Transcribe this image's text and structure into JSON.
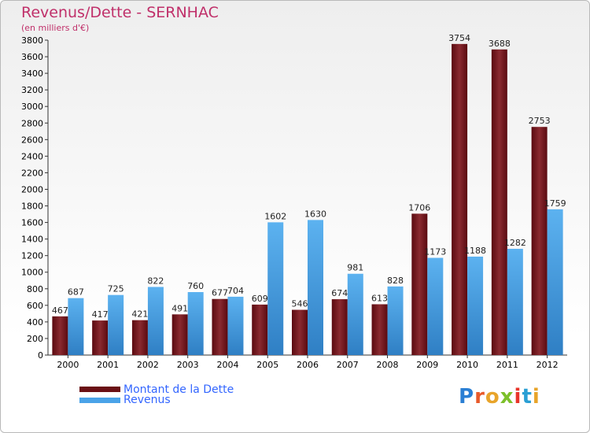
{
  "header": {
    "title": "Revenus/Dette - SERNHAC",
    "subtitle": "(en milliers d'€)"
  },
  "legend": {
    "debt_label": "Montant de la Dette",
    "revenue_label": "Revenus"
  },
  "branding": {
    "logo_text": "Proxiti"
  },
  "colors": {
    "debt_bar": "#7a1f24",
    "revenue_bar": "#4aa3e8",
    "title": "#c0306a",
    "legend_text": "#3366ff"
  },
  "chart_data": {
    "type": "bar",
    "title": "Revenus/Dette - SERNHAC",
    "ylabel": "",
    "xlabel": "",
    "categories": [
      "2000",
      "2001",
      "2002",
      "2003",
      "2004",
      "2005",
      "2006",
      "2007",
      "2008",
      "2009",
      "2010",
      "2011",
      "2012"
    ],
    "series": [
      {
        "name": "Montant de la Dette",
        "values": [
          467,
          417,
          421,
          491,
          677,
          609,
          546,
          674,
          613,
          1706,
          3754,
          3688,
          2753
        ]
      },
      {
        "name": "Revenus",
        "values": [
          687,
          725,
          822,
          760,
          704,
          1602,
          1630,
          981,
          828,
          1173,
          1188,
          1282,
          1759
        ]
      }
    ],
    "ylim": [
      0,
      3800
    ],
    "y_ticks": [
      0,
      200,
      400,
      600,
      800,
      1000,
      1200,
      1400,
      1600,
      1800,
      2000,
      2200,
      2400,
      2600,
      2800,
      3000,
      3200,
      3400,
      3600,
      3800
    ],
    "grid": false,
    "legend_position": "bottom-left"
  }
}
